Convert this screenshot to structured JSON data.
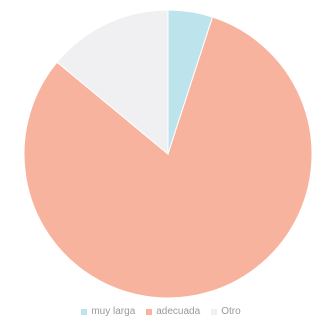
{
  "chart_data": {
    "type": "pie",
    "title": "",
    "series": [
      {
        "name": "muy larga",
        "value": 5,
        "color": "#bde3ec"
      },
      {
        "name": "adecuada",
        "value": 81,
        "color": "#f7b39e"
      },
      {
        "name": "Otro",
        "value": 14,
        "color": "#f0f0f2"
      }
    ],
    "legend_position": "bottom"
  }
}
